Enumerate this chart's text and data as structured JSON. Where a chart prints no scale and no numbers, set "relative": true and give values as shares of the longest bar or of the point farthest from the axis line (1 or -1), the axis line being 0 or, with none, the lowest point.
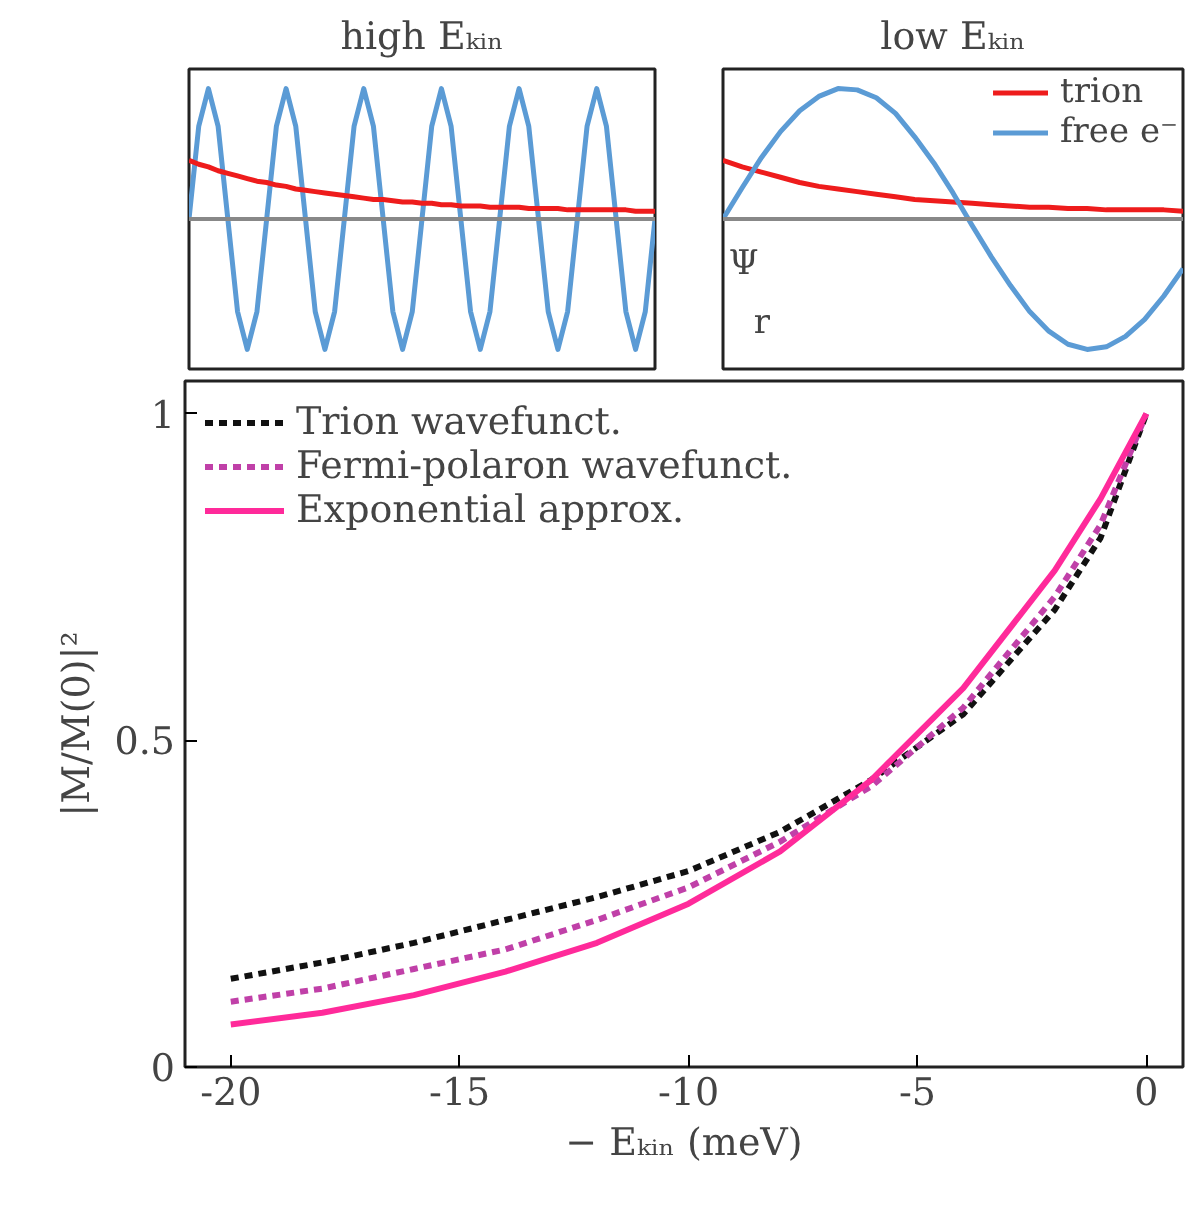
{
  "chart_data": [
    {
      "type": "line",
      "title": "high Eₖᵢₙ",
      "relative": true,
      "legend": false,
      "categories": [
        null,
        null,
        null,
        null,
        null,
        null,
        null,
        null,
        null,
        null,
        null,
        null,
        null,
        null,
        null,
        null,
        null,
        null,
        null,
        null,
        null,
        null,
        null,
        null,
        null,
        null,
        null,
        null,
        null,
        null,
        null,
        null,
        null,
        null,
        null,
        null,
        null,
        null,
        null,
        null,
        null,
        null,
        null,
        null,
        null,
        null,
        null,
        null,
        null
      ],
      "ref_lines": [
        {
          "axis": "y",
          "value": 0,
          "color": "#888888"
        }
      ],
      "series": [
        {
          "color": "#5b9bd5",
          "values": [
            0,
            0.71,
            1,
            0.71,
            0,
            -0.71,
            -1,
            -0.71,
            0,
            0.71,
            1,
            0.71,
            0,
            -0.71,
            -1,
            -0.71,
            0,
            0.71,
            1,
            0.71,
            0,
            -0.71,
            -1,
            -0.71,
            0,
            0.71,
            1,
            0.71,
            0,
            -0.71,
            -1,
            -0.71,
            0,
            0.71,
            1,
            0.71,
            0,
            -0.71,
            -1,
            -0.71,
            0,
            0.71,
            1,
            0.71,
            0,
            -0.71,
            -1,
            -0.71,
            0
          ]
        },
        {
          "color": "#ee1c1c",
          "values": [
            0.45,
            0.42,
            0.4,
            0.37,
            0.35,
            0.33,
            0.31,
            0.29,
            0.28,
            0.26,
            0.25,
            0.23,
            0.22,
            0.21,
            0.2,
            0.19,
            0.18,
            0.17,
            0.16,
            0.15,
            0.15,
            0.14,
            0.13,
            0.13,
            0.12,
            0.12,
            0.11,
            0.11,
            0.1,
            0.1,
            0.1,
            0.09,
            0.09,
            0.09,
            0.09,
            0.08,
            0.08,
            0.08,
            0.08,
            0.07,
            0.07,
            0.07,
            0.07,
            0.07,
            0.07,
            0.07,
            0.06,
            0.06,
            0.06
          ]
        }
      ]
    },
    {
      "type": "line",
      "title": "low Eₖᵢₙ",
      "relative": true,
      "legend": "top right",
      "categories": [
        null,
        null,
        null,
        null,
        null,
        null,
        null,
        null,
        null,
        null,
        null,
        null,
        null,
        null,
        null,
        null,
        null,
        null,
        null,
        null,
        null,
        null,
        null,
        null,
        null
      ],
      "ref_lines": [
        {
          "axis": "y",
          "value": 0,
          "color": "#888888"
        }
      ],
      "annotations": [
        "Ψ",
        "r"
      ],
      "series": [
        {
          "name": "trion",
          "color": "#ee1c1c",
          "values": [
            0.45,
            0.4,
            0.36,
            0.32,
            0.28,
            0.25,
            0.23,
            0.21,
            0.19,
            0.17,
            0.15,
            0.14,
            0.13,
            0.12,
            0.11,
            0.1,
            0.09,
            0.09,
            0.08,
            0.08,
            0.07,
            0.07,
            0.07,
            0.07,
            0.06
          ]
        },
        {
          "name": "free e⁻",
          "color": "#5b9bd5",
          "values": [
            0,
            0.24,
            0.47,
            0.67,
            0.83,
            0.94,
            1,
            0.99,
            0.93,
            0.81,
            0.63,
            0.43,
            0.2,
            -0.05,
            -0.29,
            -0.51,
            -0.71,
            -0.86,
            -0.96,
            -1,
            -0.98,
            -0.9,
            -0.77,
            -0.59,
            -0.38
          ]
        }
      ]
    },
    {
      "type": "line",
      "xlabel": "− Eₖᵢₙ (meV)",
      "ylabel": "|M/M(0)|²",
      "xlim": [
        -21,
        0.8
      ],
      "ylim": [
        0,
        1.05
      ],
      "xticks": [
        -20,
        -15,
        -10,
        -5,
        0
      ],
      "yticks": [
        0,
        0.5,
        1
      ],
      "grid": false,
      "legend": "top left",
      "x": [
        -20,
        -18,
        -16,
        -14,
        -12,
        -10,
        -8,
        -6,
        -4,
        -2,
        -1,
        0
      ],
      "series": [
        {
          "name": "Trion wavefunct.",
          "color": "#111111",
          "line_style": "dashed",
          "values": [
            0.135,
            0.16,
            0.19,
            0.225,
            0.26,
            0.3,
            0.36,
            0.44,
            0.54,
            0.7,
            0.81,
            1
          ]
        },
        {
          "name": "Fermi-polaron wavefunct.",
          "color": "#c040a8",
          "line_style": "dashed",
          "values": [
            0.1,
            0.12,
            0.15,
            0.18,
            0.225,
            0.275,
            0.345,
            0.43,
            0.55,
            0.72,
            0.83,
            1
          ]
        },
        {
          "name": "Exponential approx.",
          "color": "#ff2a9a",
          "line_style": "solid",
          "values": [
            0.065,
            0.083,
            0.11,
            0.146,
            0.19,
            0.25,
            0.33,
            0.44,
            0.58,
            0.76,
            0.87,
            1
          ]
        }
      ]
    }
  ]
}
